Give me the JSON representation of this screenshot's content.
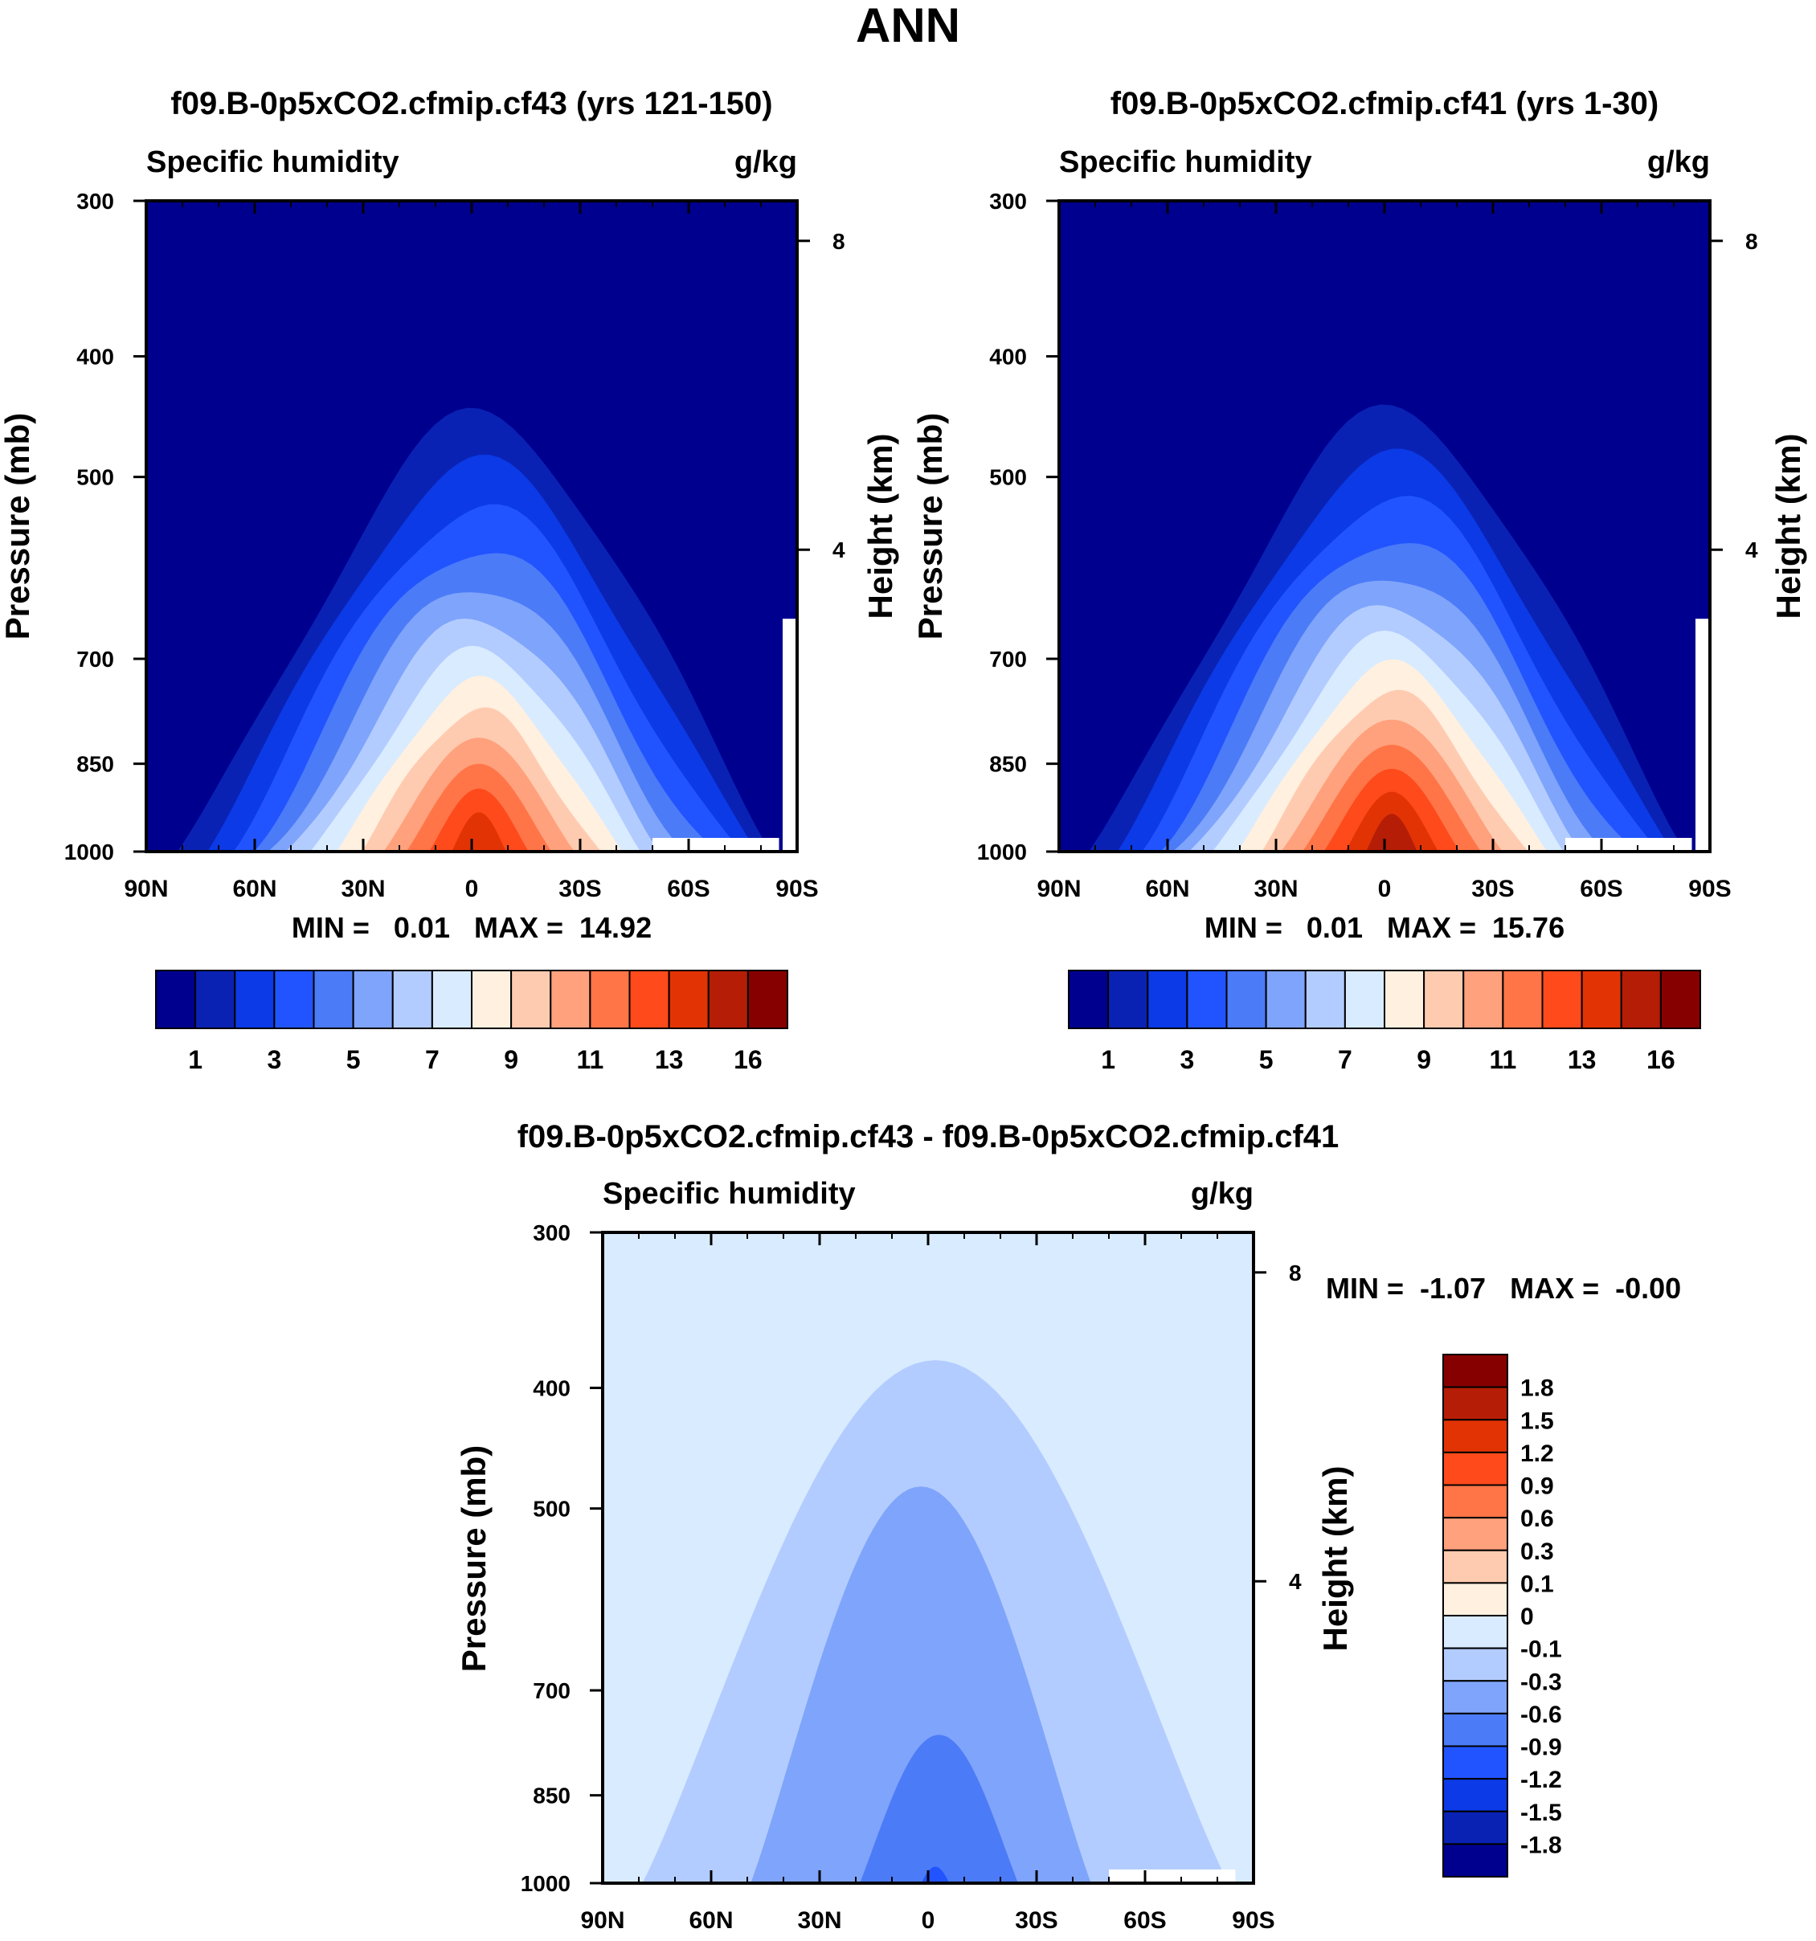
{
  "main_title": "ANN",
  "colors": {
    "abs_levels": [
      "#00008f",
      "#0a22b4",
      "#0b3ae6",
      "#2154ff",
      "#4c7bf8",
      "#7fa4fb",
      "#b3ccff",
      "#d9ebff",
      "#fff0e0",
      "#ffcbb0",
      "#ffa17d",
      "#ff7547",
      "#ff4a1b",
      "#e23305",
      "#b51d06",
      "#870000"
    ],
    "diff_levels": [
      "#00008f",
      "#0a22b4",
      "#0b3ae6",
      "#2154ff",
      "#4c7bf8",
      "#7fa4fb",
      "#b3ccff",
      "#d9ebff",
      "#fff0e0",
      "#ffcbb0",
      "#ffa17d",
      "#ff7547",
      "#ff4a1b",
      "#e23305",
      "#b51d06",
      "#870000"
    ]
  },
  "chart_data": [
    {
      "type": "contour",
      "title": "f09.B-0p5xCO2.cfmip.cf43 (yrs 121-150)",
      "left_string": "Specific humidity",
      "right_string": "g/kg",
      "ylabel": "Pressure (mb)",
      "y2label": "Height (km)",
      "x_ticks": [
        "90N",
        "60N",
        "30N",
        "0",
        "30S",
        "60S",
        "90S"
      ],
      "x_values": [
        90,
        60,
        30,
        0,
        -30,
        -60,
        -90
      ],
      "y_ticks": [
        "300",
        "400",
        "500",
        "700",
        "850",
        "1000"
      ],
      "y_values": [
        300,
        400,
        500,
        700,
        850,
        1000
      ],
      "y2_ticks": [
        "8",
        "4"
      ],
      "y2_values": [
        8,
        4
      ],
      "ylim": [
        1000,
        300
      ],
      "xlim": [
        90,
        -90
      ],
      "stats": "MIN =   0.01   MAX =  14.92",
      "min": 0.01,
      "max": 14.92,
      "colorbar_labels": [
        "1",
        "3",
        "5",
        "7",
        "9",
        "11",
        "13",
        "16"
      ],
      "colorbar_levels": [
        0.5,
        1,
        2,
        3,
        4,
        5,
        6,
        7,
        8,
        9,
        10,
        11,
        12,
        13,
        16
      ],
      "field_peak_level_index": 13
    },
    {
      "type": "contour",
      "title": "f09.B-0p5xCO2.cfmip.cf41 (yrs 1-30)",
      "left_string": "Specific humidity",
      "right_string": "g/kg",
      "ylabel": "Pressure (mb)",
      "y2label": "Height (km)",
      "x_ticks": [
        "90N",
        "60N",
        "30N",
        "0",
        "30S",
        "60S",
        "90S"
      ],
      "x_values": [
        90,
        60,
        30,
        0,
        -30,
        -60,
        -90
      ],
      "y_ticks": [
        "300",
        "400",
        "500",
        "700",
        "850",
        "1000"
      ],
      "y_values": [
        300,
        400,
        500,
        700,
        850,
        1000
      ],
      "y2_ticks": [
        "8",
        "4"
      ],
      "y2_values": [
        8,
        4
      ],
      "ylim": [
        1000,
        300
      ],
      "xlim": [
        90,
        -90
      ],
      "stats": "MIN =   0.01   MAX =  15.76",
      "min": 0.01,
      "max": 15.76,
      "colorbar_labels": [
        "1",
        "3",
        "5",
        "7",
        "9",
        "11",
        "13",
        "16"
      ],
      "colorbar_levels": [
        0.5,
        1,
        2,
        3,
        4,
        5,
        6,
        7,
        8,
        9,
        10,
        11,
        12,
        13,
        16
      ],
      "field_peak_level_index": 14
    },
    {
      "type": "contour",
      "title": "f09.B-0p5xCO2.cfmip.cf43 - f09.B-0p5xCO2.cfmip.cf41",
      "left_string": "Specific humidity",
      "right_string": "g/kg",
      "ylabel": "Pressure (mb)",
      "y2label": "Height (km)",
      "x_ticks": [
        "90N",
        "60N",
        "30N",
        "0",
        "30S",
        "60S",
        "90S"
      ],
      "x_values": [
        90,
        60,
        30,
        0,
        -30,
        -60,
        -90
      ],
      "y_ticks": [
        "300",
        "400",
        "500",
        "700",
        "850",
        "1000"
      ],
      "y_values": [
        300,
        400,
        500,
        700,
        850,
        1000
      ],
      "y2_ticks": [
        "8",
        "4"
      ],
      "y2_values": [
        8,
        4
      ],
      "ylim": [
        1000,
        300
      ],
      "xlim": [
        90,
        -90
      ],
      "stats": "MIN =  -1.07   MAX =  -0.00",
      "min": -1.07,
      "max": -0.0,
      "colorbar_labels": [
        "1.8",
        "1.5",
        "1.2",
        "0.9",
        "0.6",
        "0.3",
        "0.1",
        "0",
        "-0.1",
        "-0.3",
        "-0.6",
        "-0.9",
        "-1.2",
        "-1.5",
        "-1.8"
      ],
      "colorbar_levels": [
        1.8,
        1.5,
        1.2,
        0.9,
        0.6,
        0.3,
        0.1,
        0,
        -0.1,
        -0.3,
        -0.6,
        -0.9,
        -1.2,
        -1.5,
        -1.8
      ]
    }
  ]
}
